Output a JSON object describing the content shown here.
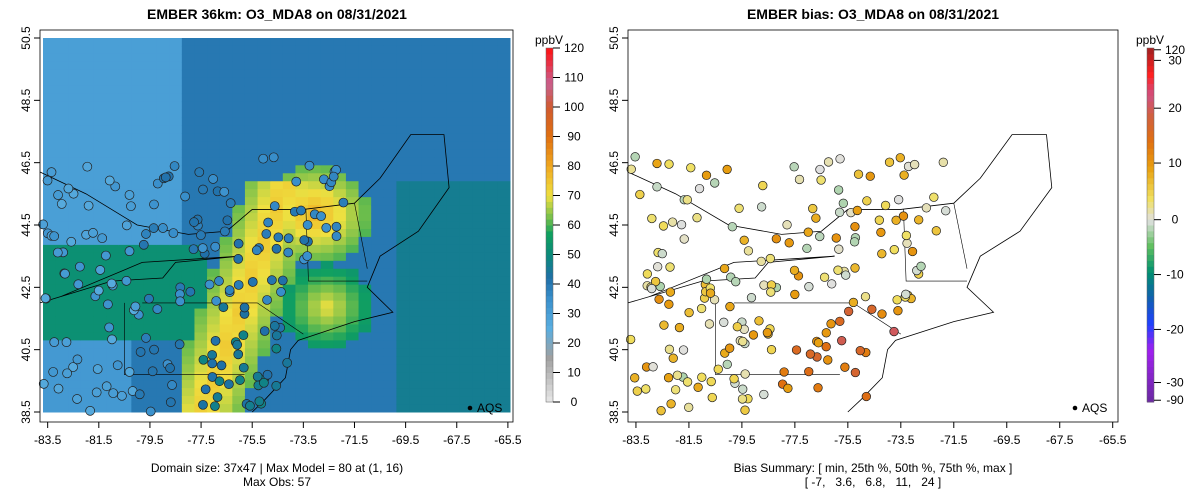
{
  "chart_data": [
    {
      "type": "heatmap",
      "title": "EMBER 36km: O3_MDA8 on 08/31/2021",
      "xlabel": "",
      "ylabel": "",
      "xticks": [
        "-83.5",
        "-81.5",
        "-79.5",
        "-77.5",
        "-75.5",
        "-73.5",
        "-71.5",
        "-69.5",
        "-67.5",
        "-65.5"
      ],
      "yticks": [
        "38.5",
        "40.5",
        "42.5",
        "44.5",
        "46.5",
        "48.5",
        "50.5"
      ],
      "xlim": [
        -83.8,
        -65.3
      ],
      "ylim": [
        38.5,
        50.5
      ],
      "colorbar": {
        "unit": "ppbV",
        "ticks": [
          "0",
          "10",
          "20",
          "30",
          "40",
          "50",
          "60",
          "70",
          "80",
          "90",
          "100",
          "110",
          "120"
        ],
        "range": [
          0,
          120
        ]
      },
      "legend": {
        "label": "AQS",
        "placement": "bottom-right"
      },
      "summary_line1": "Domain size: 37x47 | Max Model = 80 at (1, 16)",
      "summary_line2": "Max Obs: 57"
    },
    {
      "type": "scatter",
      "title": "EMBER bias: O3_MDA8 on 08/31/2021",
      "xticks": [
        "-83.5",
        "-81.5",
        "-79.5",
        "-77.5",
        "-75.5",
        "-73.5",
        "-71.5",
        "-69.5",
        "-67.5",
        "-65.5"
      ],
      "yticks": [
        "38.5",
        "40.5",
        "42.5",
        "44.5",
        "46.5",
        "48.5",
        "50.5"
      ],
      "xlim": [
        -83.8,
        -65.3
      ],
      "ylim": [
        38.5,
        50.5
      ],
      "colorbar": {
        "unit": "ppbV",
        "ticks": [
          "-90",
          "-30",
          "-20",
          "-10",
          "0",
          "10",
          "20",
          "30",
          "120"
        ]
      },
      "legend": {
        "label": "AQS",
        "placement": "bottom-right"
      },
      "summary_line1": "Bias Summary: [ min, 25th %, 50th %, 75th %, max ]",
      "summary_line2": "[ -7,   3.6,   6.8,   11,   24 ]",
      "bias_stats": {
        "min": -7,
        "p25": 3.6,
        "p50": 6.8,
        "p75": 11,
        "max": 24
      }
    }
  ]
}
